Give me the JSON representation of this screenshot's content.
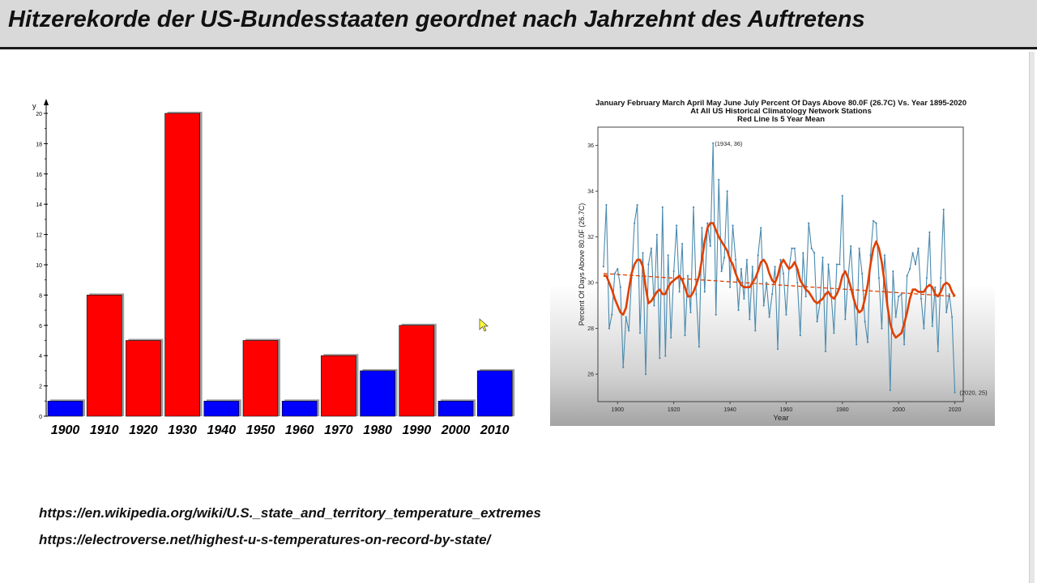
{
  "title": "Hitzerekorde der US-Bundesstaaten geordnet nach Jahrzehnt des Auftretens",
  "colors": {
    "red": "#ff0000",
    "blue": "#0000ff",
    "shadow": "#9e9e9e",
    "trend": "#e04000",
    "series": "#4a8aae"
  },
  "icons": {
    "cursor": "mouse-pointer-icon"
  },
  "links": [
    "https://en.wikipedia.org/wiki/U.S._state_and_territory_temperature_extremes",
    "https://electroverse.net/highest-u-s-temperatures-on-record-by-state/"
  ],
  "chart_data": [
    {
      "type": "bar",
      "title": "",
      "xlabel": "",
      "ylabel": "y",
      "ylim": [
        0,
        20
      ],
      "yticks": [
        0,
        2,
        4,
        6,
        8,
        10,
        12,
        14,
        16,
        18,
        20
      ],
      "categories": [
        "1900",
        "1910",
        "1920",
        "1930",
        "1940",
        "1950",
        "1960",
        "1970",
        "1980",
        "1990",
        "2000",
        "2010"
      ],
      "values": [
        1,
        8,
        5,
        20,
        1,
        5,
        1,
        4,
        3,
        6,
        1,
        3
      ],
      "bar_colors": [
        "blue",
        "red",
        "red",
        "red",
        "blue",
        "red",
        "blue",
        "red",
        "blue",
        "red",
        "blue",
        "blue"
      ],
      "grid": false,
      "legend": "none"
    },
    {
      "type": "line",
      "title": "January February March April May June July Percent Of Days Above 80.0F (26.7C) Vs. Year 1895-2020",
      "subtitle": "At All US Historical Climatology Network Stations",
      "subtitle2": "Red Line Is 5 Year Mean",
      "xlabel": "Year",
      "ylabel": "Percent Of Days Above 80.0F (26.7C)",
      "xlim": [
        1893,
        2023
      ],
      "ylim": [
        24.8,
        36.8
      ],
      "xticks": [
        1900,
        1920,
        1940,
        1960,
        1980,
        2000,
        2020
      ],
      "yticks": [
        26,
        28,
        30,
        32,
        34,
        36
      ],
      "annotations": [
        {
          "text": "(1934, 36)",
          "x": 1934,
          "y": 36.1
        },
        {
          "text": "(2020, 25)",
          "x": 2020,
          "y": 25.2
        }
      ],
      "grid": false,
      "series": [
        {
          "x": [
            1895,
            1896,
            1897,
            1898,
            1899,
            1900,
            1901,
            1902,
            1903,
            1904,
            1905,
            1906,
            1907,
            1908,
            1909,
            1910,
            1911,
            1912,
            1913,
            1914,
            1915,
            1916,
            1917,
            1918,
            1919,
            1920,
            1921,
            1922,
            1923,
            1924,
            1925,
            1926,
            1927,
            1928,
            1929,
            1930,
            1931,
            1932,
            1933,
            1934,
            1935,
            1936,
            1937,
            1938,
            1939,
            1940,
            1941,
            1942,
            1943,
            1944,
            1945,
            1946,
            1947,
            1948,
            1949,
            1950,
            1951,
            1952,
            1953,
            1954,
            1955,
            1956,
            1957,
            1958,
            1959,
            1960,
            1961,
            1962,
            1963,
            1964,
            1965,
            1966,
            1967,
            1968,
            1969,
            1970,
            1971,
            1972,
            1973,
            1974,
            1975,
            1976,
            1977,
            1978,
            1979,
            1980,
            1981,
            1982,
            1983,
            1984,
            1985,
            1986,
            1987,
            1988,
            1989,
            1990,
            1991,
            1992,
            1993,
            1994,
            1995,
            1996,
            1997,
            1998,
            1999,
            2000,
            2001,
            2002,
            2003,
            2004,
            2005,
            2006,
            2007,
            2008,
            2009,
            2010,
            2011,
            2012,
            2013,
            2014,
            2015,
            2016,
            2017,
            2018,
            2019,
            2020
          ],
          "y": [
            30.7,
            33.4,
            28.0,
            28.6,
            30.4,
            30.6,
            29.8,
            26.3,
            28.5,
            27.9,
            30.2,
            32.6,
            33.4,
            27.8,
            31.3,
            26.0,
            30.8,
            31.5,
            29.0,
            32.1,
            26.7,
            33.3,
            26.8,
            31.2,
            27.6,
            30.5,
            32.5,
            29.6,
            31.7,
            27.7,
            30.3,
            28.7,
            33.3,
            29.5,
            27.2,
            32.4,
            29.6,
            32.6,
            31.6,
            36.1,
            28.6,
            34.5,
            30.5,
            31.1,
            34.0,
            29.8,
            32.5,
            31.0,
            28.8,
            30.6,
            29.3,
            31.0,
            28.4,
            30.7,
            27.9,
            31.2,
            32.4,
            29.0,
            30.0,
            28.5,
            29.5,
            30.7,
            27.1,
            31.0,
            30.4,
            28.6,
            30.6,
            31.5,
            31.5,
            30.0,
            27.7,
            31.3,
            29.4,
            32.6,
            31.5,
            31.3,
            28.3,
            29.1,
            31.1,
            27.0,
            30.8,
            29.5,
            27.8,
            30.8,
            30.8,
            33.8,
            28.4,
            30.2,
            31.6,
            29.4,
            27.3,
            31.5,
            30.4,
            28.3,
            27.4,
            31.2,
            32.7,
            32.6,
            30.2,
            28.0,
            31.2,
            29.6,
            25.3,
            30.5,
            28.5,
            29.4,
            29.5,
            27.3,
            30.3,
            30.6,
            31.3,
            30.8,
            31.5,
            29.3,
            28.0,
            30.2,
            32.2,
            28.1,
            29.8,
            27.0,
            30.2,
            33.2,
            28.7,
            29.5,
            28.5,
            25.2
          ],
          "trend": [
            30.3,
            30.3,
            30.0,
            29.7,
            29.3,
            29.0,
            28.7,
            28.6,
            28.9,
            29.7,
            30.4,
            30.8,
            31.0,
            31.0,
            30.7,
            29.8,
            29.1,
            29.2,
            29.4,
            29.6,
            29.7,
            29.5,
            29.5,
            29.8,
            30.0,
            30.1,
            30.2,
            30.3,
            30.1,
            29.8,
            29.4,
            29.4,
            29.6,
            29.9,
            30.3,
            31.0,
            31.8,
            32.4,
            32.6,
            32.6,
            32.3,
            32.0,
            31.8,
            31.6,
            31.4,
            31.0,
            30.8,
            30.4,
            30.1,
            29.9,
            29.8,
            29.8,
            29.8,
            30.0,
            30.2,
            30.5,
            30.9,
            31.0,
            30.8,
            30.4,
            30.1,
            30.0,
            30.3,
            30.8,
            31.0,
            30.8,
            30.6,
            30.7,
            30.9,
            30.6,
            30.1,
            29.9,
            29.7,
            29.6,
            29.4,
            29.2,
            29.1,
            29.2,
            29.3,
            29.5,
            29.6,
            29.4,
            29.3,
            29.5,
            29.8,
            30.3,
            30.5,
            30.2,
            29.8,
            29.3,
            28.9,
            28.7,
            28.8,
            29.3,
            29.9,
            30.8,
            31.5,
            31.8,
            31.5,
            30.9,
            30.0,
            29.0,
            28.2,
            27.8,
            27.6,
            27.7,
            27.8,
            28.2,
            28.7,
            29.3,
            29.7,
            29.7,
            29.6,
            29.6,
            29.6,
            29.8,
            29.9,
            29.8,
            29.5,
            29.4,
            29.6,
            29.9,
            30.0,
            29.9,
            29.6,
            29.4
          ],
          "mean_trend_start": 30.4,
          "mean_trend_end": 29.4
        }
      ]
    }
  ]
}
